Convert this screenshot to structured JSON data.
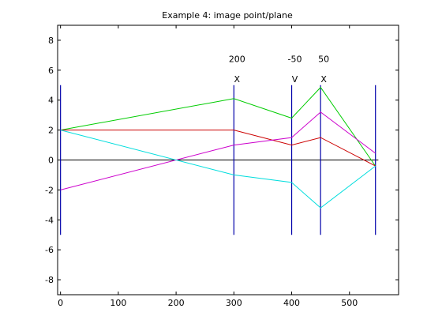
{
  "chart_data": {
    "type": "line",
    "title": "Example 4: image point/plane",
    "xlabel": "",
    "ylabel": "",
    "xlim": [
      -5,
      585
    ],
    "ylim": [
      -9,
      9
    ],
    "xticks": [
      0,
      100,
      200,
      300,
      400,
      500
    ],
    "xtick_labels": [
      "0",
      "100",
      "200",
      "300",
      "400",
      "500"
    ],
    "yticks": [
      -8,
      -6,
      -4,
      -2,
      0,
      2,
      4,
      6,
      8
    ],
    "ytick_labels": [
      "-8",
      "-6",
      "-4",
      "-2",
      "0",
      "2",
      "4",
      "6",
      "8"
    ],
    "grid": false,
    "axis_line": {
      "x": [
        0,
        550
      ],
      "y": [
        0,
        0
      ],
      "color": "#000000"
    },
    "planes": [
      {
        "x": 0,
        "ymin": -5,
        "ymax": 5,
        "color": "#0000aa"
      },
      {
        "x": 300,
        "ymin": -5,
        "ymax": 5,
        "color": "#0000aa"
      },
      {
        "x": 400,
        "ymin": -5,
        "ymax": 5,
        "color": "#0000aa"
      },
      {
        "x": 450,
        "ymin": -5,
        "ymax": 5,
        "color": "#0000aa"
      },
      {
        "x": 545,
        "ymin": -5,
        "ymax": 5,
        "color": "#0000aa"
      }
    ],
    "annotations": [
      {
        "x": 300,
        "value": "200",
        "kind": "X"
      },
      {
        "x": 400,
        "value": "-50",
        "kind": "V"
      },
      {
        "x": 450,
        "value": "50",
        "kind": "X"
      }
    ],
    "series": [
      {
        "color": "#00cc00",
        "x": [
          0,
          300,
          400,
          450,
          545
        ],
        "y": [
          2,
          4.1,
          2.8,
          4.85,
          -0.4
        ]
      },
      {
        "color": "#cc0000",
        "x": [
          0,
          300,
          400,
          450,
          545
        ],
        "y": [
          2,
          2,
          1,
          1.5,
          -0.4
        ]
      },
      {
        "color": "#cc00cc",
        "x": [
          0,
          300,
          400,
          450,
          545
        ],
        "y": [
          -2,
          1,
          1.5,
          3.2,
          0.45
        ]
      },
      {
        "color": "#00dddd",
        "x": [
          0,
          300,
          400,
          450,
          545
        ],
        "y": [
          2,
          -1,
          -1.5,
          -3.2,
          -0.4
        ]
      }
    ]
  }
}
